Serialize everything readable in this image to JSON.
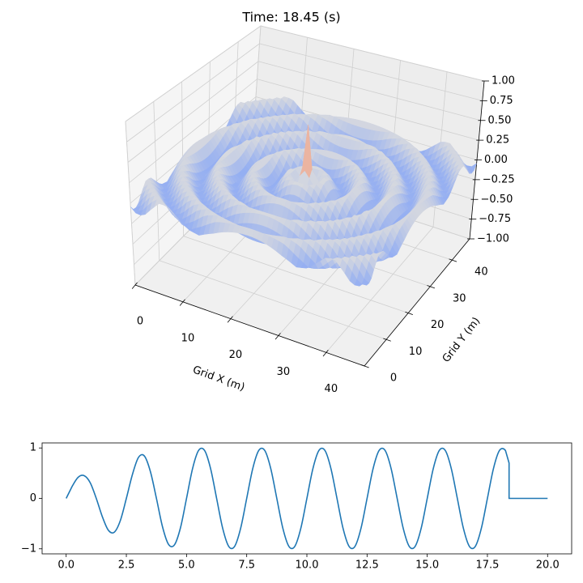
{
  "chart_data": [
    {
      "type": "surface",
      "title": "Time: 18.45 (s)",
      "x_label": "Grid X (m)",
      "y_label": "Grid Y (m)",
      "xlim": [
        0,
        48
      ],
      "ylim": [
        0,
        48
      ],
      "zlim": [
        -1,
        1
      ],
      "xticks": [
        0,
        10,
        20,
        30,
        40
      ],
      "yticks": [
        0,
        10,
        20,
        30,
        40
      ],
      "zticks": [
        {
          "value": -1,
          "label": "−1.00"
        },
        {
          "value": -0.75,
          "label": "−0.75"
        },
        {
          "value": -0.5,
          "label": "−0.50"
        },
        {
          "value": -0.25,
          "label": "−0.25"
        },
        {
          "value": 0,
          "label": "0.00"
        },
        {
          "value": 0.25,
          "label": "0.25"
        },
        {
          "value": 0.5,
          "label": "0.50"
        },
        {
          "value": 0.75,
          "label": "0.75"
        },
        {
          "value": 1,
          "label": "1.00"
        }
      ],
      "center": [
        24,
        24
      ],
      "radius": [
        0,
        1,
        2,
        3,
        4,
        5,
        6,
        7,
        8,
        9,
        10,
        11,
        12,
        13,
        14,
        15,
        16,
        17,
        18,
        19,
        20,
        21,
        22,
        23,
        24,
        25,
        26,
        27,
        28,
        29,
        30,
        31,
        32,
        33,
        34
      ],
      "values": [
        0.75,
        0.2,
        0.015,
        0.11,
        0.11,
        0.015,
        -0.09,
        -0.12,
        -0.04,
        0.07,
        0.12,
        0.07,
        -0.04,
        -0.12,
        -0.09,
        0.015,
        0.11,
        0.11,
        0.015,
        -0.09,
        -0.12,
        -0.04,
        0.07,
        0.12,
        0.07,
        -0.04,
        -0.12,
        -0.09,
        0.015,
        0.11,
        0.11,
        0.015,
        -0.09,
        -0.12,
        -0.04
      ],
      "colormap": "coolwarm",
      "grid": true
    },
    {
      "type": "line",
      "color": "#1f77b4",
      "x": [
        0,
        0.25,
        0.5,
        0.75,
        1,
        1.25,
        1.5,
        1.75,
        2,
        2.25,
        2.5,
        2.75,
        3,
        3.25,
        3.5,
        3.75,
        4,
        4.25,
        4.5,
        4.75,
        5,
        5.25,
        5.5,
        5.75,
        6,
        6.25,
        6.5,
        6.75,
        7,
        7.25,
        7.5,
        7.75,
        8,
        8.25,
        8.5,
        8.75,
        9,
        9.25,
        9.5,
        9.75,
        10,
        10.25,
        10.5,
        10.75,
        11,
        11.25,
        11.5,
        11.75,
        12,
        12.25,
        12.5,
        12.75,
        13,
        13.25,
        13.5,
        13.75,
        14,
        14.25,
        14.5,
        14.75,
        15,
        15.25,
        15.5,
        15.75,
        16,
        16.25,
        16.5,
        16.75,
        17,
        17.25,
        17.5,
        17.75,
        18,
        18.25,
        18.4,
        18.4,
        20
      ],
      "values": [
        0,
        0.24,
        0.42,
        0.45,
        0.31,
        0,
        -0.36,
        -0.63,
        -0.67,
        -0.44,
        0,
        0.47,
        0.81,
        0.84,
        0.53,
        0,
        -0.56,
        -0.91,
        -0.92,
        -0.58,
        0,
        0.59,
        0.95,
        0.95,
        0.59,
        0,
        -0.59,
        -0.95,
        -0.95,
        -0.59,
        0,
        0.59,
        0.95,
        0.95,
        0.59,
        0,
        -0.59,
        -0.95,
        -0.95,
        -0.59,
        0,
        0.59,
        0.95,
        0.95,
        0.59,
        0,
        -0.59,
        -0.95,
        -0.95,
        -0.59,
        0,
        0.59,
        0.95,
        0.95,
        0.59,
        0,
        -0.59,
        -0.95,
        -0.95,
        -0.59,
        0,
        0.59,
        0.95,
        0.95,
        0.59,
        0,
        -0.59,
        -0.95,
        -0.95,
        -0.59,
        0,
        0.59,
        0.95,
        0.95,
        0.7,
        0,
        0
      ],
      "xlim": [
        -1,
        21
      ],
      "ylim": [
        -1.1,
        1.1
      ],
      "xticks": [
        {
          "value": 0,
          "label": "0.0"
        },
        {
          "value": 2.5,
          "label": "2.5"
        },
        {
          "value": 5,
          "label": "5.0"
        },
        {
          "value": 7.5,
          "label": "7.5"
        },
        {
          "value": 10,
          "label": "10.0"
        },
        {
          "value": 12.5,
          "label": "12.5"
        },
        {
          "value": 15,
          "label": "15.0"
        },
        {
          "value": 17.5,
          "label": "17.5"
        },
        {
          "value": 20,
          "label": "20.0"
        }
      ],
      "yticks": [
        {
          "value": -1,
          "label": "−1"
        },
        0,
        1
      ]
    }
  ]
}
